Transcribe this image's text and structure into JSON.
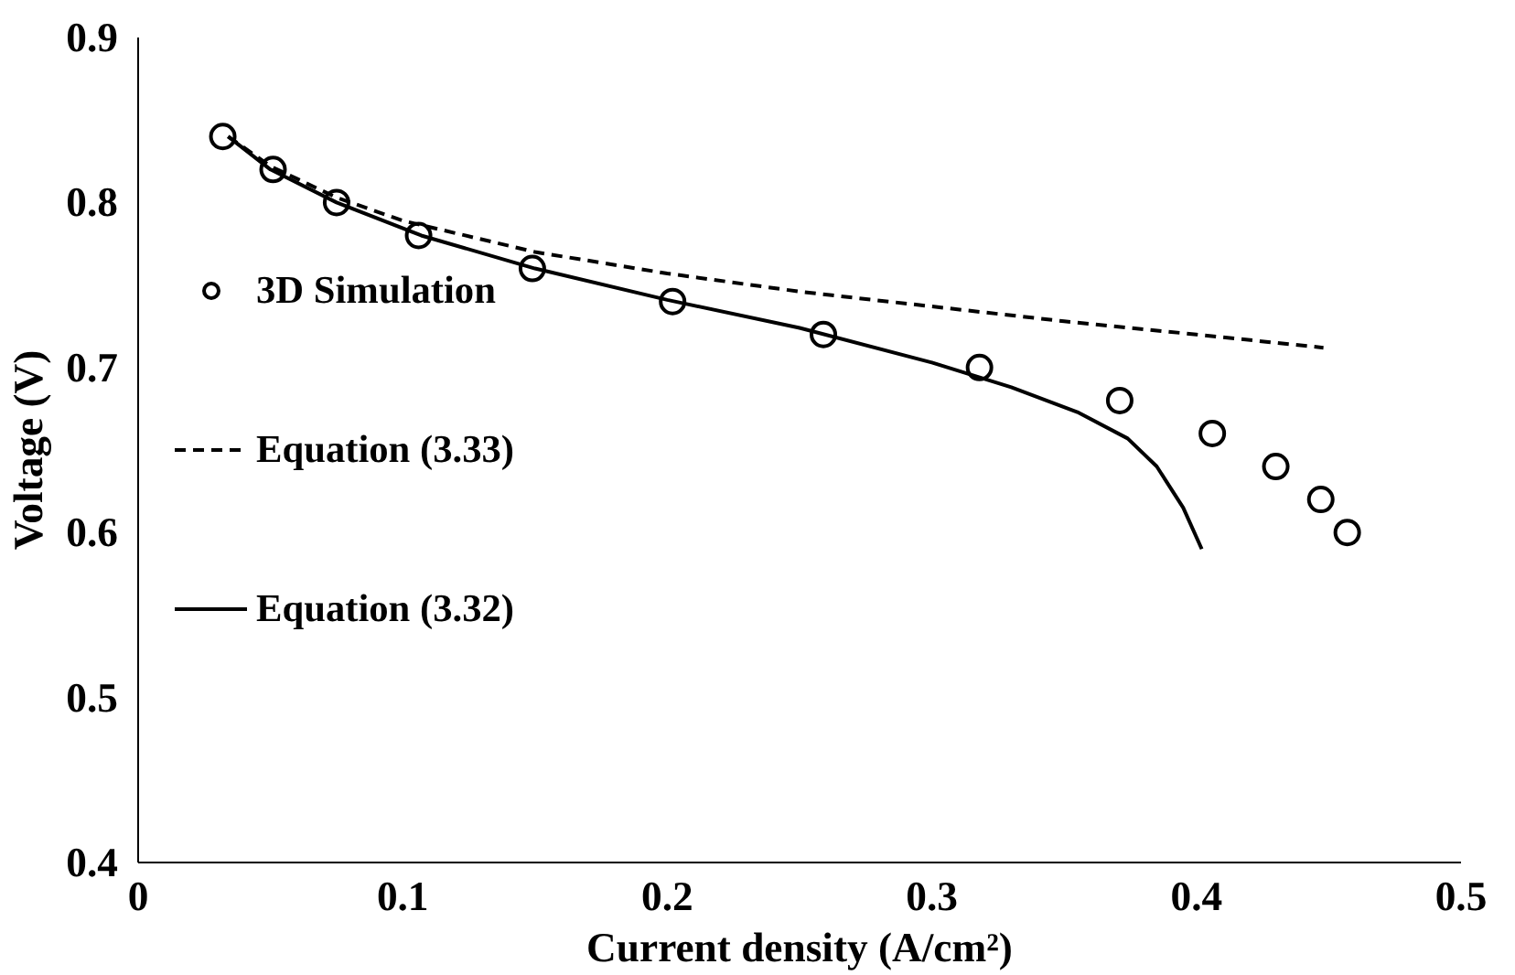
{
  "chart_data": {
    "type": "line",
    "xlabel": "Current density (A/cm²)",
    "ylabel": "Voltage (V)",
    "xlim": [
      0,
      0.5
    ],
    "ylim": [
      0.4,
      0.9
    ],
    "xticks": [
      0,
      0.1,
      0.2,
      0.3,
      0.4,
      0.5
    ],
    "yticks": [
      0.4,
      0.5,
      0.6,
      0.7,
      0.8,
      0.9
    ],
    "grid": false,
    "legend": "left",
    "series": [
      {
        "name": "3D Simulation",
        "type": "scatter",
        "marker": "circle",
        "color": "#000000",
        "x": [
          0.032,
          0.051,
          0.075,
          0.106,
          0.149,
          0.202,
          0.259,
          0.318,
          0.371,
          0.406,
          0.43,
          0.447,
          0.457
        ],
        "values": [
          0.84,
          0.82,
          0.8,
          0.78,
          0.76,
          0.74,
          0.72,
          0.7,
          0.68,
          0.66,
          0.64,
          0.62,
          0.6
        ]
      },
      {
        "name": "Equation (3.33)",
        "line_style": "dashed",
        "color": "#000000",
        "x": [
          0.034,
          0.05,
          0.075,
          0.1,
          0.15,
          0.2,
          0.25,
          0.3,
          0.35,
          0.4,
          0.448
        ],
        "values": [
          0.84,
          0.822,
          0.803,
          0.789,
          0.77,
          0.757,
          0.746,
          0.737,
          0.728,
          0.72,
          0.712
        ]
      },
      {
        "name": "Equation (3.32)",
        "line_style": "solid",
        "color": "#000000",
        "x": [
          0.034,
          0.05,
          0.075,
          0.107,
          0.15,
          0.2,
          0.25,
          0.3,
          0.33,
          0.355,
          0.374,
          0.385,
          0.395,
          0.402
        ],
        "values": [
          0.84,
          0.82,
          0.8,
          0.78,
          0.76,
          0.741,
          0.724,
          0.703,
          0.688,
          0.673,
          0.657,
          0.64,
          0.615,
          0.59
        ]
      }
    ]
  }
}
